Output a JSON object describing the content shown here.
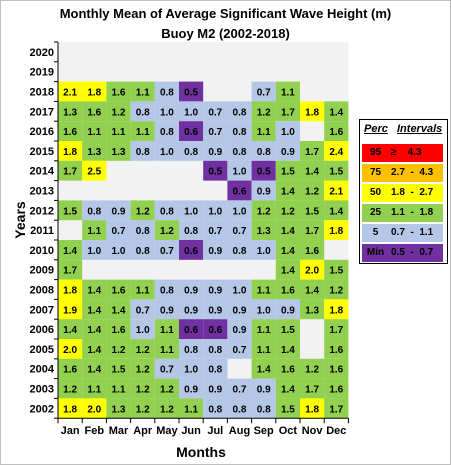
{
  "chart_data": {
    "type": "heatmap",
    "title": "Monthly Mean of Average Significant Wave Height (m)",
    "subtitle": "Buoy M2 (2002-2018)",
    "xlabel": "Months",
    "ylabel": "Years",
    "x": [
      "Jan",
      "Feb",
      "Mar",
      "Apr",
      "May",
      "Jun",
      "Jul",
      "Aug",
      "Sep",
      "Oct",
      "Nov",
      "Dec"
    ],
    "y": [
      "2020",
      "2019",
      "2018",
      "2017",
      "2016",
      "2015",
      "2014",
      "2013",
      "2012",
      "2011",
      "2010",
      "2009",
      "2008",
      "2007",
      "2006",
      "2005",
      "2004",
      "2003",
      "2002"
    ],
    "values": [
      [
        null,
        null,
        null,
        null,
        null,
        null,
        null,
        null,
        null,
        null,
        null,
        null
      ],
      [
        null,
        null,
        null,
        null,
        null,
        null,
        null,
        null,
        null,
        null,
        null,
        null
      ],
      [
        "2.1",
        "1.8",
        "1.6",
        "1.1",
        "0.8",
        "0.5",
        null,
        null,
        "0.7",
        "1.1",
        null,
        null
      ],
      [
        "1.3",
        "1.6",
        "1.2",
        "0.8",
        "1.0",
        "1.0",
        "0.7",
        "0.8",
        "1.2",
        "1.7",
        "1.8",
        "1.4"
      ],
      [
        "1.6",
        "1.1",
        "1.1",
        "1.1",
        "0.8",
        "0.6",
        "0.7",
        "0.8",
        "1.1",
        "1.0",
        null,
        "1.6"
      ],
      [
        "1.8",
        "1.3",
        "1.3",
        "0.8",
        "1.0",
        "0.8",
        "0.9",
        "0.8",
        "0.8",
        "0.9",
        "1.7",
        "2.4"
      ],
      [
        "1.7",
        "2.5",
        null,
        null,
        null,
        null,
        "0.5",
        "1.0",
        "0.5",
        "1.5",
        "1.4",
        "1.5"
      ],
      [
        null,
        null,
        null,
        null,
        null,
        null,
        null,
        "0.6",
        "0.9",
        "1.4",
        "1.2",
        "2.1"
      ],
      [
        "1.5",
        "0.8",
        "0.9",
        "1.2",
        "0.8",
        "1.0",
        "1.0",
        "1.0",
        "1.2",
        "1.2",
        "1.5",
        "1.4"
      ],
      [
        null,
        "1.1",
        "0.7",
        "0.8",
        "1.2",
        "0.8",
        "0.7",
        "0.7",
        "1.3",
        "1.4",
        "1.7",
        "1.8"
      ],
      [
        "1.4",
        "1.0",
        "1.0",
        "0.8",
        "0.7",
        "0.6",
        "0.9",
        "0.8",
        "1.0",
        "1.4",
        "1.6",
        null
      ],
      [
        "1.7",
        null,
        null,
        null,
        null,
        null,
        null,
        null,
        null,
        "1.4",
        "2.0",
        "1.5"
      ],
      [
        "1.8",
        "1.4",
        "1.6",
        "1.1",
        "0.8",
        "0.9",
        "0.9",
        "1.0",
        "1.1",
        "1.6",
        "1.4",
        "1.2"
      ],
      [
        "1.9",
        "1.4",
        "1.4",
        "0.7",
        "0.9",
        "0.9",
        "0.9",
        "0.9",
        "1.0",
        "0.9",
        "1.3",
        "1.8"
      ],
      [
        "1.4",
        "1.4",
        "1.6",
        "1.0",
        "1.1",
        "0.6",
        "0.6",
        "0.9",
        "1.1",
        "1.5",
        null,
        "1.7"
      ],
      [
        "2.0",
        "1.4",
        "1.2",
        "1.2",
        "1.1",
        "0.8",
        "0.8",
        "0.7",
        "1.1",
        "1.4",
        null,
        "1.6"
      ],
      [
        "1.6",
        "1.4",
        "1.5",
        "1.2",
        "0.7",
        "1.0",
        "0.8",
        null,
        "1.4",
        "1.6",
        "1.2",
        "1.6"
      ],
      [
        "1.2",
        "1.1",
        "1.1",
        "1.2",
        "1.2",
        "0.9",
        "0.9",
        "0.7",
        "0.9",
        "1.4",
        "1.7",
        "1.6"
      ],
      [
        "1.8",
        "2.0",
        "1.3",
        "1.2",
        "1.2",
        "1.1",
        "0.8",
        "0.8",
        "0.8",
        "1.5",
        "1.8",
        "1.7"
      ]
    ],
    "legend": {
      "placement": "right",
      "headers": [
        "Perc",
        "Intervals"
      ],
      "rows": [
        {
          "perc": "95",
          "interval": "≥    4.3",
          "color": "#ff0000",
          "min": 4.3,
          "max": 99
        },
        {
          "perc": "75",
          "interval": "2.7  -  4.3",
          "color": "#ffc000",
          "min": 2.7,
          "max": 4.3
        },
        {
          "perc": "50",
          "interval": "1.8  -  2.7",
          "color": "#ffff00",
          "min": 1.8,
          "max": 2.7
        },
        {
          "perc": "25",
          "interval": "1.1  -  1.8",
          "color": "#92d050",
          "min": 1.1,
          "max": 1.8
        },
        {
          "perc": "5",
          "interval": "0.7  -  1.1",
          "color": "#b4c7e7",
          "min": 0.7,
          "max": 1.1
        },
        {
          "perc": "Min",
          "interval": "0.5  -  0.7",
          "color": "#7030a0",
          "min": 0.5,
          "max": 0.7
        }
      ]
    },
    "empty_color": "#f2f2f2"
  }
}
